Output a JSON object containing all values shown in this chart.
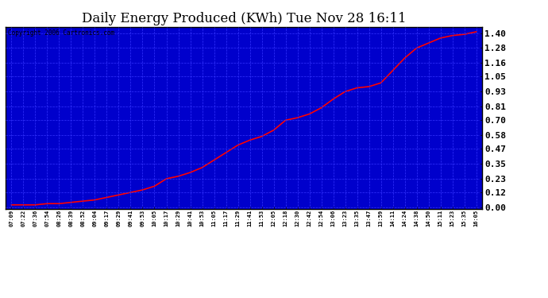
{
  "title": "Daily Energy Produced (KWh) Tue Nov 28 16:11",
  "copyright_text": "Copyright 2006 Cartronics.com",
  "fig_bg_color": "#ffffff",
  "plot_bg_color": "#0000cc",
  "line_color": "#ff0000",
  "grid_color": "#3333ff",
  "title_color": "#000000",
  "ytick_labels": [
    "0.00",
    "0.12",
    "0.23",
    "0.35",
    "0.47",
    "0.58",
    "0.70",
    "0.81",
    "0.93",
    "1.05",
    "1.16",
    "1.28",
    "1.40"
  ],
  "ytick_values": [
    0.0,
    0.12,
    0.23,
    0.35,
    0.47,
    0.58,
    0.7,
    0.81,
    0.93,
    1.05,
    1.16,
    1.28,
    1.4
  ],
  "x_labels": [
    "07:09",
    "07:22",
    "07:36",
    "07:54",
    "08:26",
    "08:39",
    "08:52",
    "09:04",
    "09:17",
    "09:29",
    "09:41",
    "09:53",
    "10:05",
    "10:17",
    "10:29",
    "10:41",
    "10:53",
    "11:05",
    "11:17",
    "11:29",
    "11:41",
    "11:53",
    "12:05",
    "12:18",
    "12:30",
    "12:42",
    "12:54",
    "13:06",
    "13:23",
    "13:35",
    "13:47",
    "13:59",
    "14:11",
    "14:24",
    "14:38",
    "14:50",
    "15:11",
    "15:23",
    "15:35",
    "16:05"
  ],
  "y_values": [
    0.02,
    0.02,
    0.02,
    0.03,
    0.03,
    0.04,
    0.05,
    0.06,
    0.08,
    0.1,
    0.12,
    0.14,
    0.17,
    0.23,
    0.25,
    0.28,
    0.32,
    0.38,
    0.44,
    0.5,
    0.54,
    0.57,
    0.62,
    0.7,
    0.72,
    0.75,
    0.8,
    0.87,
    0.93,
    0.96,
    0.97,
    1.0,
    1.1,
    1.2,
    1.28,
    1.32,
    1.36,
    1.38,
    1.39,
    1.41
  ],
  "ylim": [
    -0.01,
    1.45
  ],
  "title_fontsize": 12,
  "ylabel_fontsize": 8,
  "xlabel_fontsize": 5,
  "copyright_fontsize": 5.5,
  "line_width": 1.2
}
